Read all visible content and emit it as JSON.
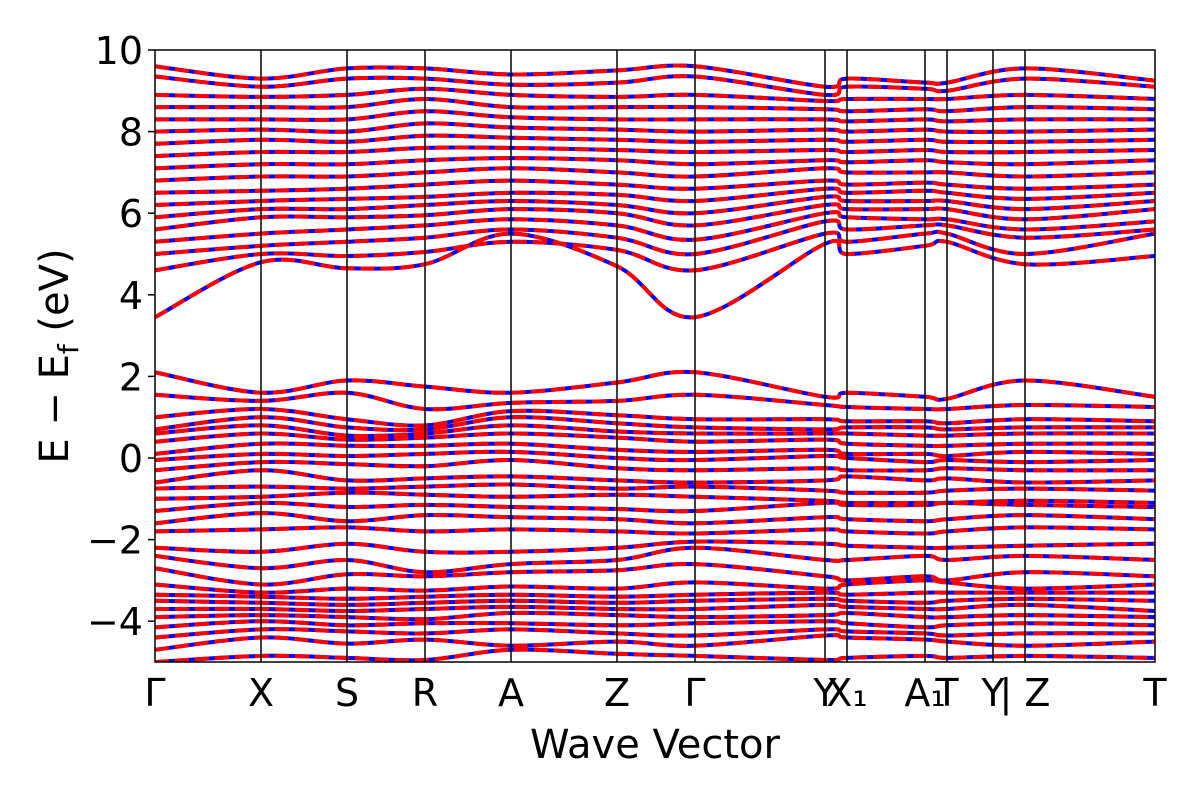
{
  "chart_data": {
    "type": "line",
    "title": "",
    "xlabel": "Wave Vector",
    "ylabel": "E − E_f (eV)",
    "ylabel_parts": {
      "main": "E − E",
      "sub": "f",
      "unit": " (eV)"
    },
    "ylim": [
      -5,
      10
    ],
    "yticks": [
      -4,
      -2,
      0,
      2,
      4,
      6,
      8,
      10
    ],
    "ytick_labels": [
      "−4",
      "−2",
      "0",
      "2",
      "4",
      "6",
      "8",
      "10"
    ],
    "xlim": [
      0,
      5.0
    ],
    "grid": false,
    "legend": "none",
    "kpath": [
      {
        "label": "Γ",
        "x": 0.0
      },
      {
        "label": "X",
        "x": 0.53
      },
      {
        "label": "S",
        "x": 0.96
      },
      {
        "label": "R",
        "x": 1.35
      },
      {
        "label": "A",
        "x": 1.78
      },
      {
        "label": "Z",
        "x": 2.31
      },
      {
        "label": "Γ",
        "x": 2.7
      },
      {
        "label": "Y",
        "x": 3.35
      },
      {
        "label": "X₁",
        "x": 3.46
      },
      {
        "label": "A₁",
        "x": 3.85
      },
      {
        "label": "T",
        "x": 3.96
      },
      {
        "label": "Y",
        "x": 4.19
      },
      {
        "label": "| Z",
        "x": 4.35
      },
      {
        "label": "T",
        "x": 5.0
      }
    ],
    "colors": {
      "series_a": "#0000ff",
      "series_b": "#ff0000",
      "axis": "#000000"
    },
    "band_knots_x": [
      0.0,
      0.53,
      0.96,
      1.35,
      1.78,
      2.31,
      2.7,
      3.35,
      3.46,
      3.85,
      3.96,
      4.35,
      5.0
    ],
    "series": [
      {
        "line_style": "solid",
        "color": "#0000ff",
        "bands": [
          [
            -5.0,
            -4.85,
            -4.9,
            -4.95,
            -4.7,
            -4.8,
            -4.85,
            -4.95,
            -4.9,
            -4.85,
            -4.9,
            -4.85,
            -4.9
          ],
          [
            -4.7,
            -4.4,
            -4.55,
            -4.45,
            -4.6,
            -4.5,
            -4.6,
            -4.35,
            -4.4,
            -4.45,
            -4.5,
            -4.6,
            -4.5
          ],
          [
            -4.4,
            -4.2,
            -4.25,
            -4.3,
            -4.2,
            -4.3,
            -4.35,
            -4.2,
            -4.25,
            -4.3,
            -4.35,
            -4.3,
            -4.3
          ],
          [
            -4.15,
            -4.0,
            -4.1,
            -4.05,
            -4.05,
            -4.1,
            -4.05,
            -4.0,
            -4.05,
            -4.15,
            -4.1,
            -4.05,
            -4.1
          ],
          [
            -3.9,
            -3.85,
            -3.9,
            -3.95,
            -3.8,
            -3.85,
            -3.9,
            -3.85,
            -3.8,
            -3.9,
            -3.9,
            -3.85,
            -3.9
          ],
          [
            -3.7,
            -3.7,
            -3.75,
            -3.7,
            -3.65,
            -3.7,
            -3.7,
            -3.6,
            -3.65,
            -3.7,
            -3.7,
            -3.6,
            -3.75
          ],
          [
            -3.5,
            -3.55,
            -3.6,
            -3.55,
            -3.5,
            -3.55,
            -3.5,
            -3.45,
            -3.5,
            -3.55,
            -3.5,
            -3.45,
            -3.5
          ],
          [
            -3.35,
            -3.4,
            -3.45,
            -3.4,
            -3.35,
            -3.4,
            -3.35,
            -3.3,
            -3.35,
            -3.3,
            -3.3,
            -3.3,
            -3.3
          ],
          [
            -3.1,
            -3.3,
            -3.2,
            -3.25,
            -3.15,
            -3.2,
            -3.05,
            -3.2,
            -3.1,
            -3.0,
            -3.05,
            -3.2,
            -3.1
          ],
          [
            -2.7,
            -3.1,
            -2.85,
            -2.9,
            -2.8,
            -2.75,
            -2.6,
            -2.9,
            -3.0,
            -2.9,
            -3.0,
            -2.8,
            -2.9
          ],
          [
            -2.4,
            -2.7,
            -2.5,
            -2.8,
            -2.6,
            -2.5,
            -2.2,
            -2.5,
            -2.5,
            -2.4,
            -2.5,
            -2.4,
            -2.5
          ],
          [
            -2.2,
            -2.3,
            -2.1,
            -2.3,
            -2.3,
            -2.2,
            -2.05,
            -2.1,
            -2.15,
            -2.2,
            -2.2,
            -2.15,
            -2.1
          ],
          [
            -1.8,
            -1.75,
            -1.7,
            -1.8,
            -1.75,
            -1.8,
            -1.85,
            -1.75,
            -1.8,
            -1.85,
            -1.8,
            -1.7,
            -1.75
          ],
          [
            -1.6,
            -1.35,
            -1.55,
            -1.4,
            -1.45,
            -1.5,
            -1.6,
            -1.45,
            -1.5,
            -1.55,
            -1.5,
            -1.4,
            -1.5
          ],
          [
            -1.3,
            -1.1,
            -1.2,
            -1.15,
            -1.2,
            -1.25,
            -1.3,
            -1.1,
            -1.15,
            -1.15,
            -1.1,
            -1.15,
            -1.2
          ],
          [
            -1.0,
            -0.95,
            -0.85,
            -0.9,
            -0.95,
            -0.9,
            -0.95,
            -1.05,
            -1.1,
            -1.1,
            -1.1,
            -1.05,
            -1.1
          ],
          [
            -0.75,
            -0.7,
            -0.75,
            -0.7,
            -0.65,
            -0.75,
            -0.7,
            -0.8,
            -0.85,
            -0.85,
            -0.8,
            -0.75,
            -0.8
          ],
          [
            -0.6,
            -0.3,
            -0.55,
            -0.5,
            -0.45,
            -0.55,
            -0.6,
            -0.55,
            -0.45,
            -0.55,
            -0.5,
            -0.6,
            -0.55
          ],
          [
            -0.3,
            -0.1,
            -0.15,
            -0.2,
            -0.05,
            -0.25,
            -0.3,
            -0.25,
            -0.3,
            -0.3,
            -0.25,
            -0.3,
            -0.3
          ],
          [
            -0.05,
            0.1,
            0.05,
            0.1,
            0.15,
            0.0,
            -0.05,
            0.05,
            0.0,
            -0.1,
            -0.05,
            -0.1,
            -0.05
          ],
          [
            0.1,
            0.35,
            0.3,
            0.3,
            0.35,
            0.2,
            0.15,
            0.2,
            0.1,
            0.1,
            0.05,
            0.15,
            0.1
          ],
          [
            0.4,
            0.6,
            0.45,
            0.5,
            0.6,
            0.5,
            0.4,
            0.45,
            0.35,
            0.3,
            0.3,
            0.35,
            0.35
          ],
          [
            0.6,
            0.8,
            0.55,
            0.6,
            0.8,
            0.65,
            0.6,
            0.6,
            0.6,
            0.55,
            0.55,
            0.6,
            0.6
          ],
          [
            0.7,
            1.0,
            0.75,
            0.7,
            1.0,
            0.85,
            0.75,
            0.7,
            0.75,
            0.75,
            0.7,
            0.75,
            0.75
          ],
          [
            1.0,
            1.2,
            0.95,
            0.8,
            1.15,
            1.05,
            0.95,
            0.95,
            0.9,
            0.9,
            0.85,
            0.95,
            0.9
          ],
          [
            1.55,
            1.4,
            1.6,
            1.2,
            1.35,
            1.4,
            1.55,
            1.3,
            1.25,
            1.2,
            1.2,
            1.3,
            1.25
          ],
          [
            2.1,
            1.6,
            1.9,
            1.75,
            1.6,
            1.85,
            2.1,
            1.5,
            1.6,
            1.5,
            1.45,
            1.9,
            1.5
          ],
          [
            3.45,
            4.8,
            4.65,
            4.75,
            5.5,
            4.7,
            3.45,
            5.25,
            5.0,
            5.2,
            5.3,
            4.75,
            4.95
          ],
          [
            4.6,
            5.0,
            4.95,
            5.05,
            5.3,
            5.1,
            4.6,
            5.5,
            5.3,
            5.5,
            5.5,
            5.0,
            5.5
          ],
          [
            5.0,
            5.2,
            5.3,
            5.4,
            5.6,
            5.4,
            5.0,
            5.8,
            5.6,
            5.7,
            5.7,
            5.4,
            5.6
          ],
          [
            5.3,
            5.5,
            5.6,
            5.7,
            5.85,
            5.7,
            5.35,
            6.0,
            5.9,
            5.85,
            5.85,
            5.6,
            5.8
          ],
          [
            5.6,
            5.9,
            5.9,
            5.95,
            6.1,
            6.0,
            5.7,
            6.2,
            6.1,
            6.1,
            6.1,
            5.85,
            6.1
          ],
          [
            5.9,
            6.1,
            6.1,
            6.2,
            6.3,
            6.2,
            6.0,
            6.4,
            6.3,
            6.3,
            6.3,
            6.1,
            6.3
          ],
          [
            6.2,
            6.3,
            6.35,
            6.4,
            6.5,
            6.45,
            6.3,
            6.6,
            6.5,
            6.55,
            6.5,
            6.35,
            6.5
          ],
          [
            6.5,
            6.55,
            6.6,
            6.7,
            6.8,
            6.7,
            6.6,
            6.8,
            6.7,
            6.75,
            6.7,
            6.6,
            6.7
          ],
          [
            6.8,
            6.9,
            6.9,
            7.0,
            7.1,
            7.0,
            6.9,
            7.1,
            7.0,
            7.0,
            7.0,
            6.9,
            7.0
          ],
          [
            7.1,
            7.2,
            7.2,
            7.3,
            7.35,
            7.3,
            7.2,
            7.3,
            7.25,
            7.3,
            7.25,
            7.2,
            7.3
          ],
          [
            7.4,
            7.5,
            7.5,
            7.6,
            7.6,
            7.55,
            7.5,
            7.55,
            7.5,
            7.55,
            7.5,
            7.5,
            7.55
          ],
          [
            7.7,
            7.8,
            7.75,
            7.9,
            7.85,
            7.8,
            7.75,
            7.8,
            7.75,
            7.8,
            7.75,
            7.75,
            7.8
          ],
          [
            8.0,
            8.05,
            8.0,
            8.2,
            8.1,
            8.05,
            8.0,
            8.05,
            8.0,
            8.05,
            8.0,
            8.0,
            8.05
          ],
          [
            8.3,
            8.3,
            8.3,
            8.5,
            8.35,
            8.3,
            8.3,
            8.3,
            8.25,
            8.3,
            8.25,
            8.3,
            8.3
          ],
          [
            8.6,
            8.6,
            8.6,
            8.8,
            8.6,
            8.6,
            8.6,
            8.55,
            8.5,
            8.55,
            8.5,
            8.6,
            8.55
          ],
          [
            8.9,
            8.85,
            8.9,
            9.05,
            8.9,
            8.85,
            8.9,
            8.75,
            8.8,
            8.8,
            8.8,
            8.9,
            8.8
          ],
          [
            9.35,
            9.1,
            9.3,
            9.3,
            9.15,
            9.2,
            9.35,
            8.9,
            9.1,
            9.05,
            9.0,
            9.3,
            9.1
          ],
          [
            9.6,
            9.3,
            9.55,
            9.55,
            9.4,
            9.5,
            9.6,
            9.1,
            9.3,
            9.2,
            9.2,
            9.55,
            9.25
          ]
        ]
      },
      {
        "line_style": "dashed",
        "color": "#ff0000",
        "same_bands_as_series": 0
      }
    ]
  }
}
